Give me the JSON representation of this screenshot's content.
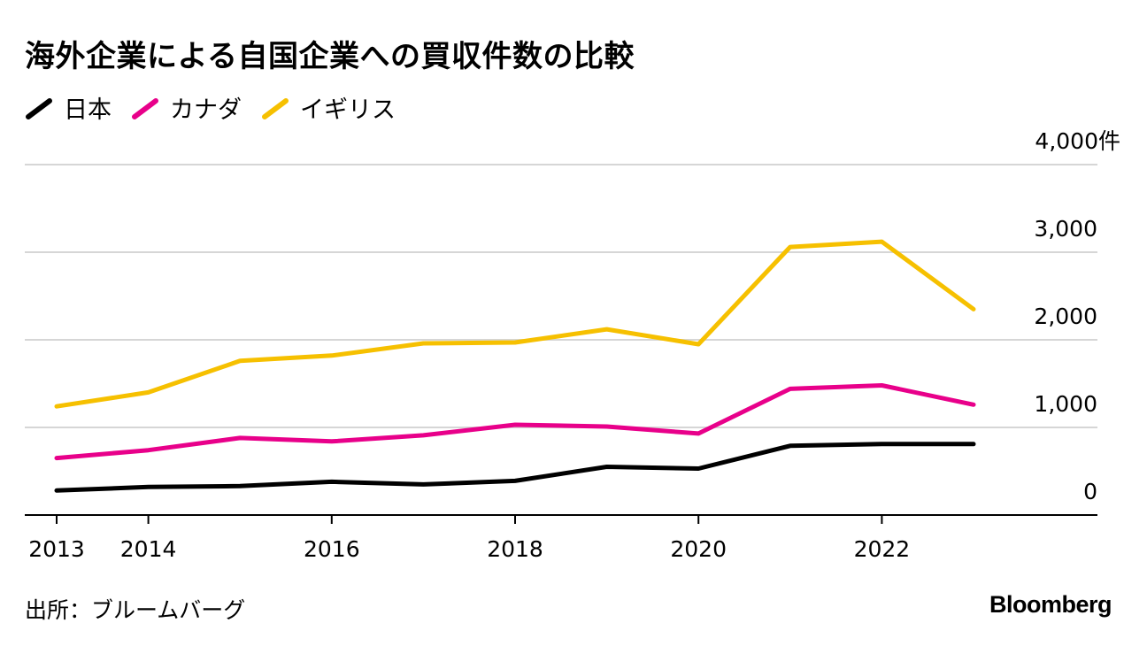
{
  "chart_data": {
    "type": "line",
    "title": "海外企業による自国企業への買収件数の比較",
    "x": [
      2013,
      2014,
      2015,
      2016,
      2017,
      2018,
      2019,
      2020,
      2021,
      2022,
      2023
    ],
    "x_tick_labels": [
      "2013",
      "2014",
      "2016",
      "2018",
      "2020",
      "2022"
    ],
    "x_tick_values": [
      2013,
      2014,
      2016,
      2018,
      2020,
      2022
    ],
    "y_tick_labels": [
      "4,000件",
      "3,000",
      "2,000",
      "1,000",
      "0"
    ],
    "y_tick_values": [
      4000,
      3000,
      2000,
      1000,
      0
    ],
    "ylim": [
      0,
      4000
    ],
    "xlim": [
      2013,
      2024.2
    ],
    "grid": true,
    "legend_position": "top-left",
    "series": [
      {
        "name": "日本",
        "color": "#000000",
        "values": [
          280,
          320,
          330,
          380,
          350,
          390,
          550,
          530,
          790,
          810,
          810
        ]
      },
      {
        "name": "カナダ",
        "color": "#e8008a",
        "values": [
          650,
          740,
          880,
          840,
          910,
          1030,
          1010,
          930,
          1440,
          1480,
          1260
        ]
      },
      {
        "name": "イギリス",
        "color": "#f6c000",
        "values": [
          1240,
          1400,
          1760,
          1820,
          1960,
          1970,
          2120,
          1950,
          3060,
          3120,
          2350
        ]
      }
    ]
  },
  "source": "出所：ブルームバーグ",
  "logo": "Bloomberg"
}
